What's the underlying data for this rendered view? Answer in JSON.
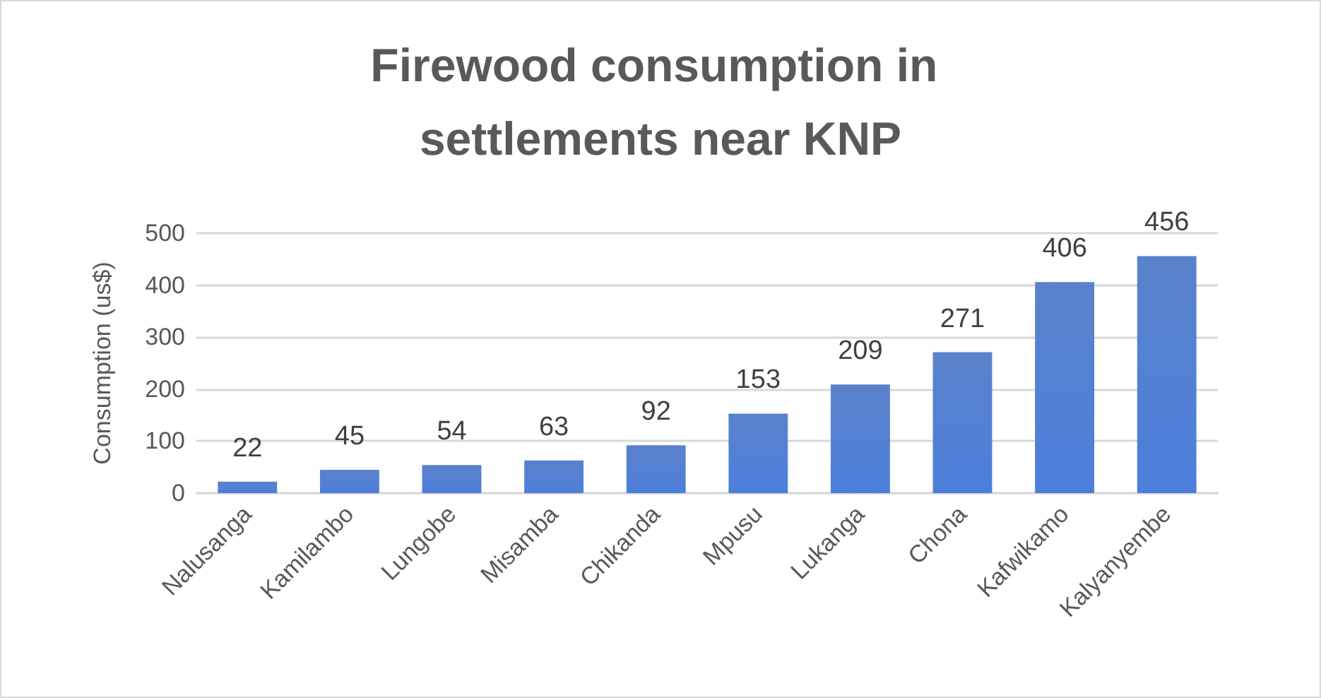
{
  "chart_data": {
    "type": "bar",
    "title": "Firewood consumption in settlements near KNP",
    "ylabel": "Consumption (us$)",
    "categories": [
      "Nalusanga",
      "Kamilambo",
      "Lungobe",
      "Misamba",
      "Chikanda",
      "Mpusu",
      "Lukanga",
      "Chona",
      "Kafwikamo",
      "Kalyanyembe"
    ],
    "values": [
      22,
      45,
      54,
      63,
      92,
      153,
      209,
      271,
      406,
      456
    ],
    "color": "#4472c4",
    "ylim": [
      0,
      500
    ],
    "yticks": [
      0,
      100,
      200,
      300,
      400,
      500
    ],
    "grid": "y",
    "data_labels": true
  }
}
